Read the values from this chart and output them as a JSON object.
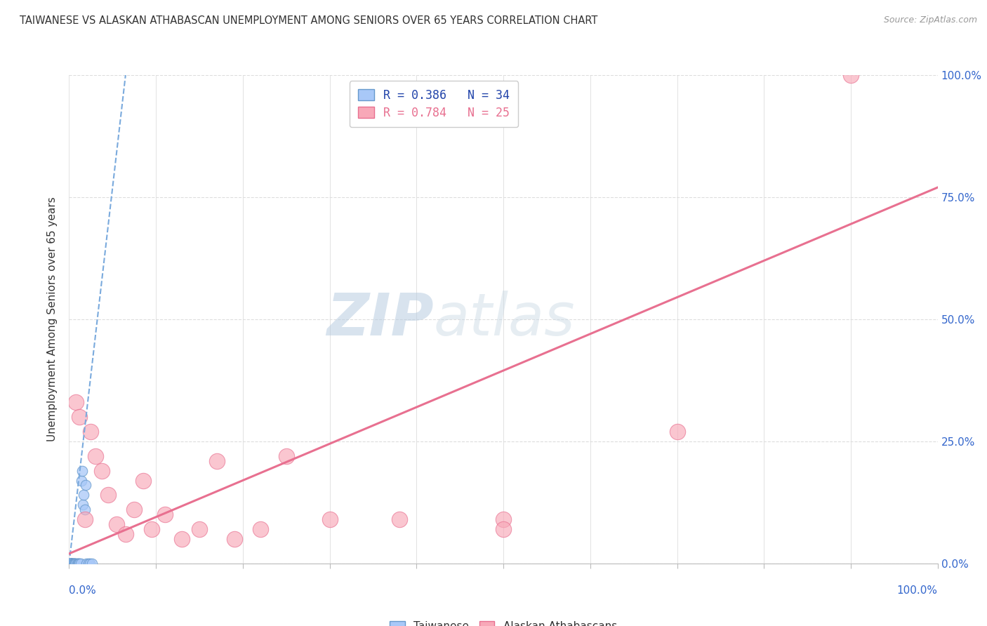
{
  "title": "TAIWANESE VS ALASKAN ATHABASCAN UNEMPLOYMENT AMONG SENIORS OVER 65 YEARS CORRELATION CHART",
  "source": "Source: ZipAtlas.com",
  "ylabel": "Unemployment Among Seniors over 65 years",
  "xlim": [
    0,
    1.0
  ],
  "ylim": [
    0,
    1.0
  ],
  "xtick_vals": [
    0.0,
    0.1,
    0.2,
    0.3,
    0.4,
    0.5,
    0.6,
    0.7,
    0.8,
    0.9,
    1.0
  ],
  "ytick_vals": [
    0.0,
    0.25,
    0.5,
    0.75,
    1.0
  ],
  "ytick_labels_right": [
    "0.0%",
    "25.0%",
    "50.0%",
    "75.0%",
    "100.0%"
  ],
  "x_corner_labels": [
    "0.0%",
    "100.0%"
  ],
  "taiwanese_color": "#a8c8f8",
  "alaskan_color": "#f8a8b8",
  "taiwanese_edge_color": "#6699cc",
  "alaskan_edge_color": "#e87090",
  "taiwanese_line_color": "#7aaadd",
  "alaskan_line_color": "#e87090",
  "legend_r_taiwanese": "R = 0.386",
  "legend_n_taiwanese": "N = 34",
  "legend_r_alaskan": "R = 0.784",
  "legend_n_alaskan": "N = 25",
  "legend_label_color": "#2244aa",
  "watermark_zip": "ZIP",
  "watermark_atlas": "atlas",
  "watermark_color_zip": "#c8d8ec",
  "watermark_color_atlas": "#c8d0e0",
  "taiwanese_x": [
    0.001,
    0.001,
    0.001,
    0.002,
    0.002,
    0.002,
    0.002,
    0.003,
    0.003,
    0.003,
    0.004,
    0.004,
    0.004,
    0.005,
    0.005,
    0.006,
    0.006,
    0.007,
    0.008,
    0.009,
    0.01,
    0.011,
    0.012,
    0.013,
    0.014,
    0.015,
    0.016,
    0.017,
    0.018,
    0.019,
    0.02,
    0.022,
    0.024,
    0.026
  ],
  "taiwanese_y": [
    0.0,
    0.0,
    0.0,
    0.0,
    0.0,
    0.0,
    0.0,
    0.0,
    0.0,
    0.0,
    0.0,
    0.0,
    0.0,
    0.0,
    0.0,
    0.0,
    0.0,
    0.0,
    0.0,
    0.0,
    0.0,
    0.0,
    0.0,
    0.0,
    0.17,
    0.19,
    0.12,
    0.14,
    0.11,
    0.16,
    0.0,
    0.0,
    0.0,
    0.0
  ],
  "alaskan_x": [
    0.008,
    0.012,
    0.018,
    0.025,
    0.03,
    0.038,
    0.045,
    0.055,
    0.065,
    0.075,
    0.085,
    0.095,
    0.11,
    0.13,
    0.15,
    0.17,
    0.19,
    0.22,
    0.25,
    0.3,
    0.38,
    0.5,
    0.5,
    0.7,
    0.9
  ],
  "alaskan_y": [
    0.33,
    0.3,
    0.09,
    0.27,
    0.22,
    0.19,
    0.14,
    0.08,
    0.06,
    0.11,
    0.17,
    0.07,
    0.1,
    0.05,
    0.07,
    0.21,
    0.05,
    0.07,
    0.22,
    0.09,
    0.09,
    0.09,
    0.07,
    0.27,
    1.0
  ],
  "taiwanese_trendline_x": [
    0.0,
    0.065
  ],
  "taiwanese_trendline_y": [
    0.0,
    1.0
  ],
  "alaskan_trendline_x": [
    0.0,
    1.0
  ],
  "alaskan_trendline_y": [
    0.02,
    0.77
  ],
  "background_color": "#ffffff",
  "grid_color": "#dddddd",
  "grid_linestyle": "--"
}
